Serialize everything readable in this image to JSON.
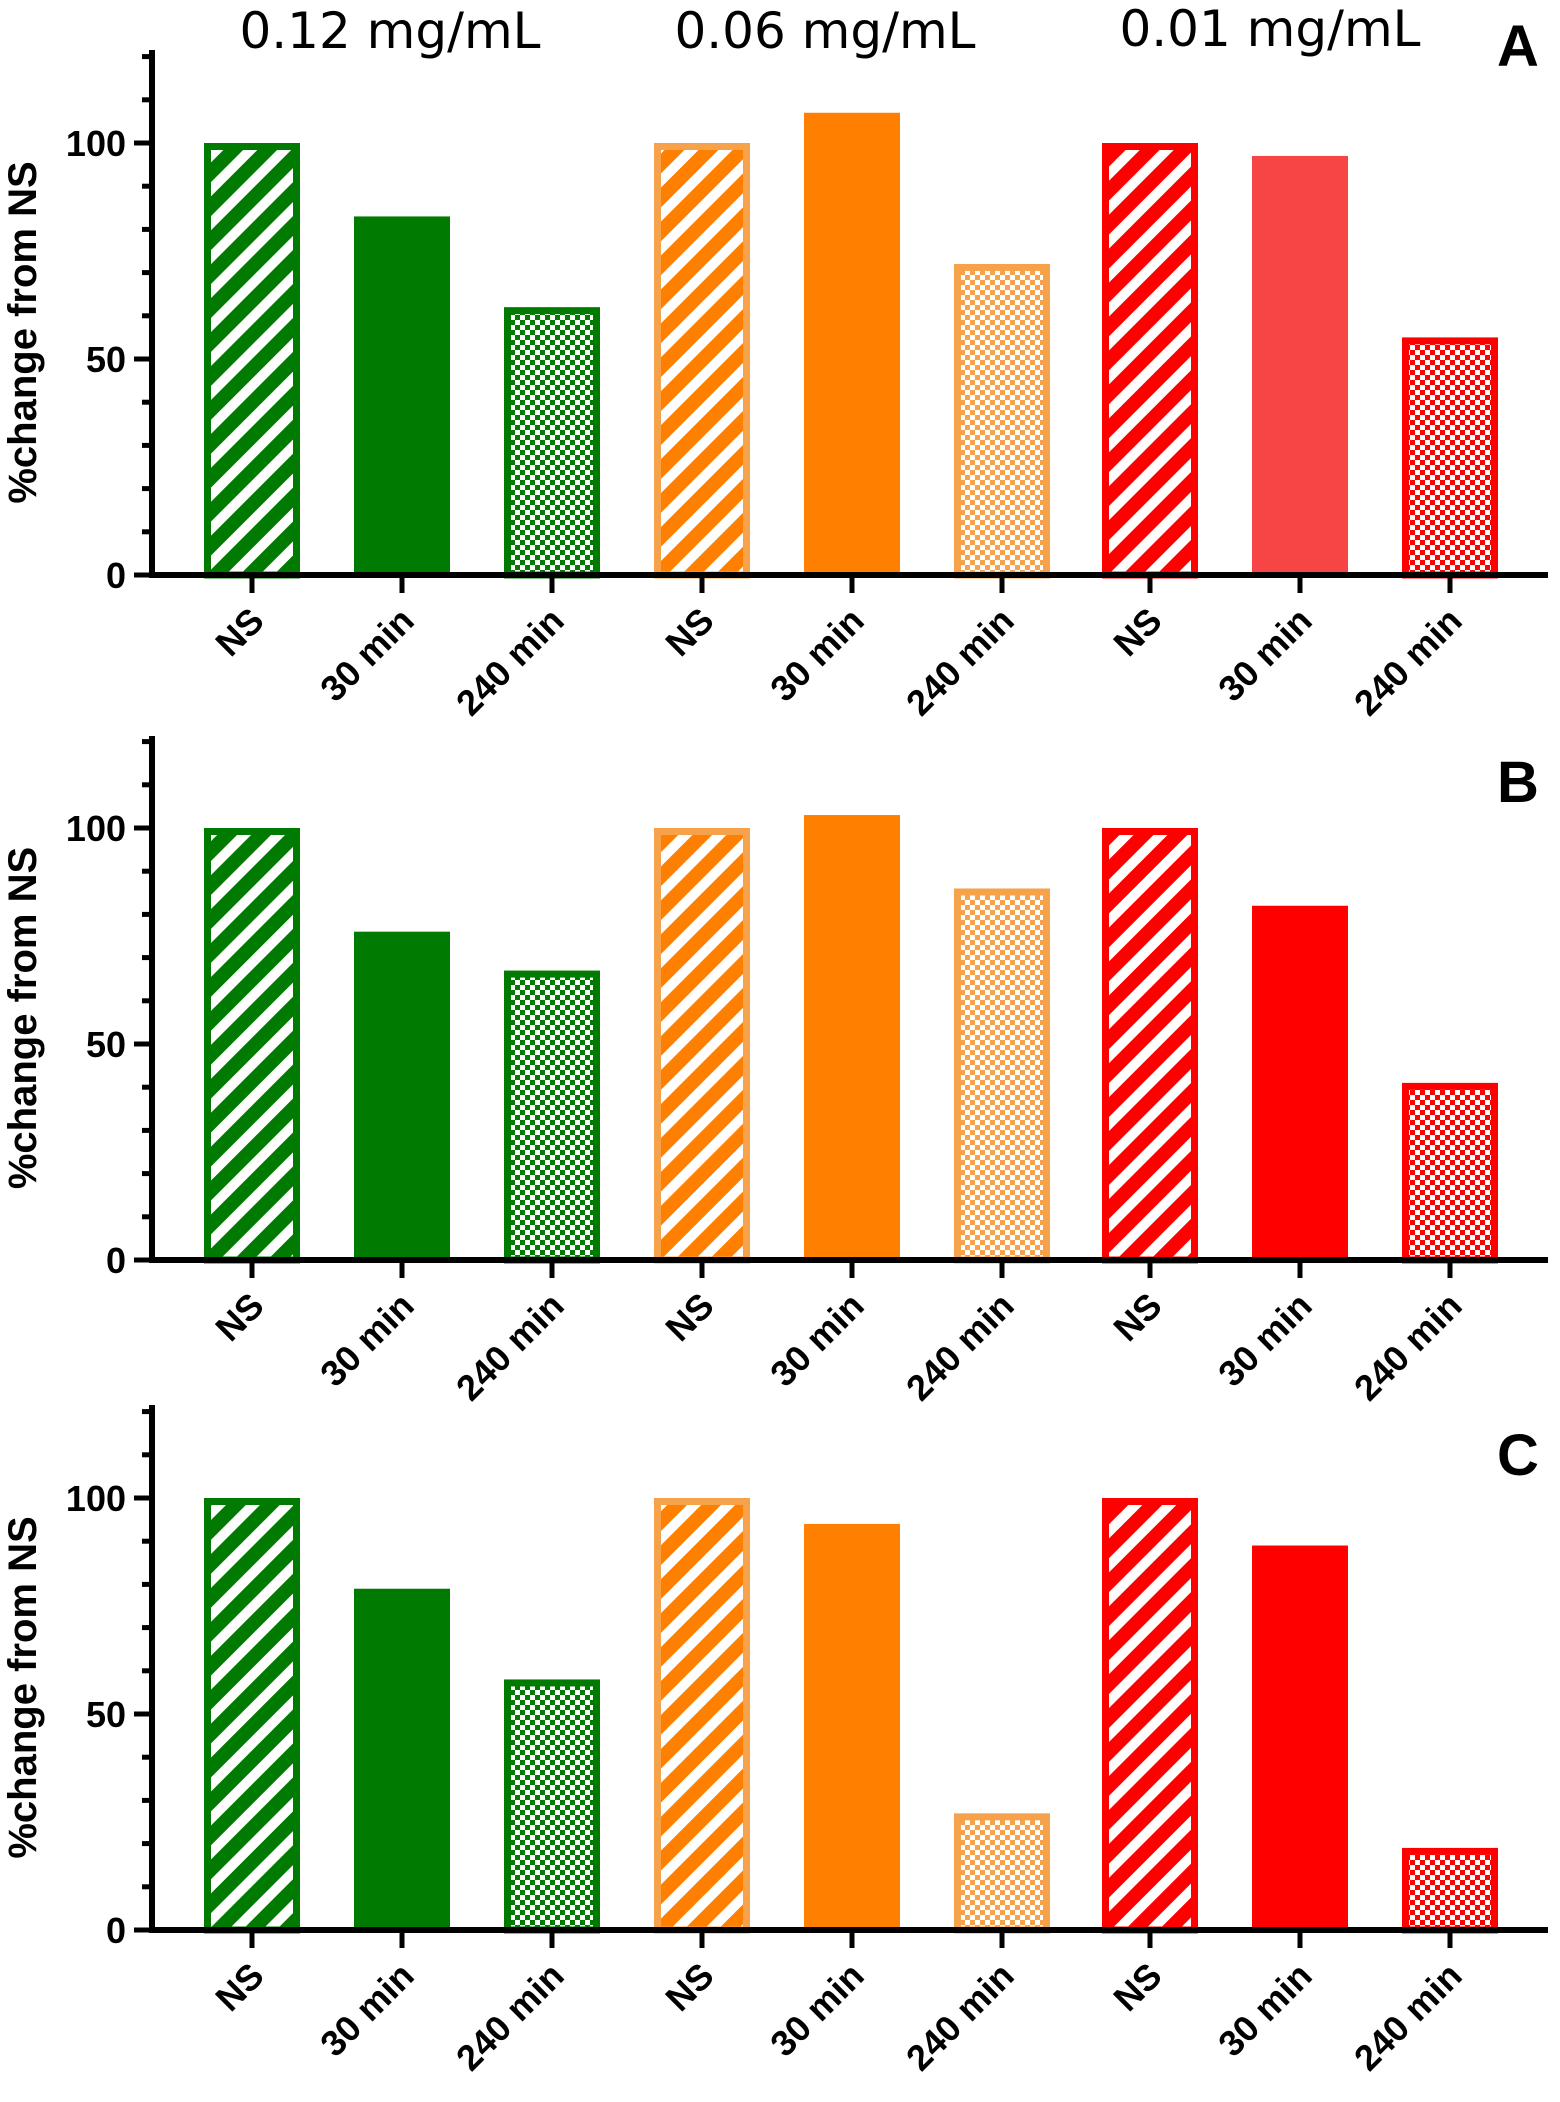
{
  "figure": {
    "concentration_labels": [
      "0.12 mg/mL",
      "0.06 mg/mL",
      "0.01 mg/mL"
    ]
  },
  "colors": {
    "green": "#007a00",
    "orange": "#ff8000",
    "orange_light": "#f5a24a",
    "red": "#ff0000",
    "red_light": "#f74444"
  },
  "chart_data": [
    {
      "type": "bar",
      "panel": "A",
      "ylabel": "%change from NS",
      "ylim": [
        0,
        120
      ],
      "yticks": [
        0,
        50,
        100
      ],
      "categories": [
        "NS",
        "30 min",
        "240 min",
        "NS",
        "30 min",
        "240 min",
        "NS",
        "30 min",
        "240 min"
      ],
      "groups": [
        "0.12 mg/mL",
        "0.06 mg/mL",
        "0.01 mg/mL"
      ],
      "values": [
        100,
        83,
        62,
        100,
        107,
        72,
        100,
        97,
        55
      ]
    },
    {
      "type": "bar",
      "panel": "B",
      "ylabel": "%change from NS",
      "ylim": [
        0,
        120
      ],
      "yticks": [
        0,
        50,
        100
      ],
      "categories": [
        "NS",
        "30 min",
        "240 min",
        "NS",
        "30 min",
        "240 min",
        "NS",
        "30 min",
        "240 min"
      ],
      "groups": [
        "0.12 mg/mL",
        "0.06 mg/mL",
        "0.01 mg/mL"
      ],
      "values": [
        100,
        76,
        67,
        100,
        103,
        86,
        100,
        82,
        41
      ]
    },
    {
      "type": "bar",
      "panel": "C",
      "ylabel": "%change from NS",
      "ylim": [
        0,
        120
      ],
      "yticks": [
        0,
        50,
        100
      ],
      "categories": [
        "NS",
        "30 min",
        "240 min",
        "NS",
        "30 min",
        "240 min",
        "NS",
        "30 min",
        "240 min"
      ],
      "groups": [
        "0.12 mg/mL",
        "0.06 mg/mL",
        "0.01 mg/mL"
      ],
      "values": [
        100,
        79,
        58,
        100,
        94,
        27,
        100,
        89,
        19
      ]
    }
  ]
}
